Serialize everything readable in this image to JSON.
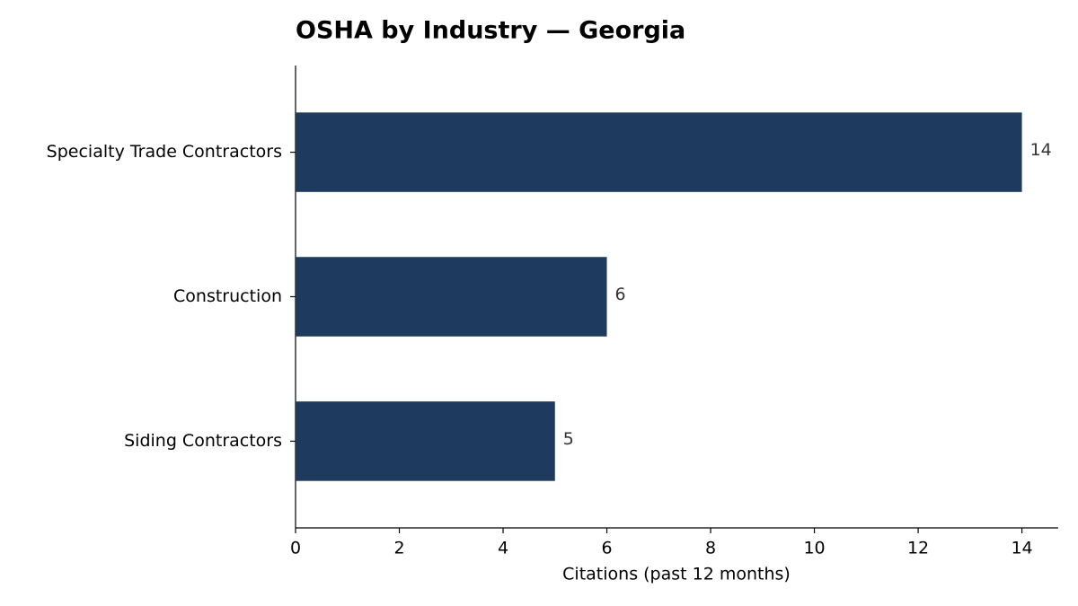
{
  "chart_data": {
    "type": "bar",
    "orientation": "horizontal",
    "title": "OSHA by Industry — Georgia",
    "categories": [
      "Specialty Trade Contractors",
      "Construction",
      "Siding Contractors"
    ],
    "values": [
      14,
      6,
      5
    ],
    "color": "#1f3a5f",
    "xlabel": "Citations (past 12 months)",
    "xlim": [
      0,
      14.7
    ],
    "xticks": [
      0,
      2,
      4,
      6,
      8,
      10,
      12,
      14
    ],
    "grid": false
  }
}
